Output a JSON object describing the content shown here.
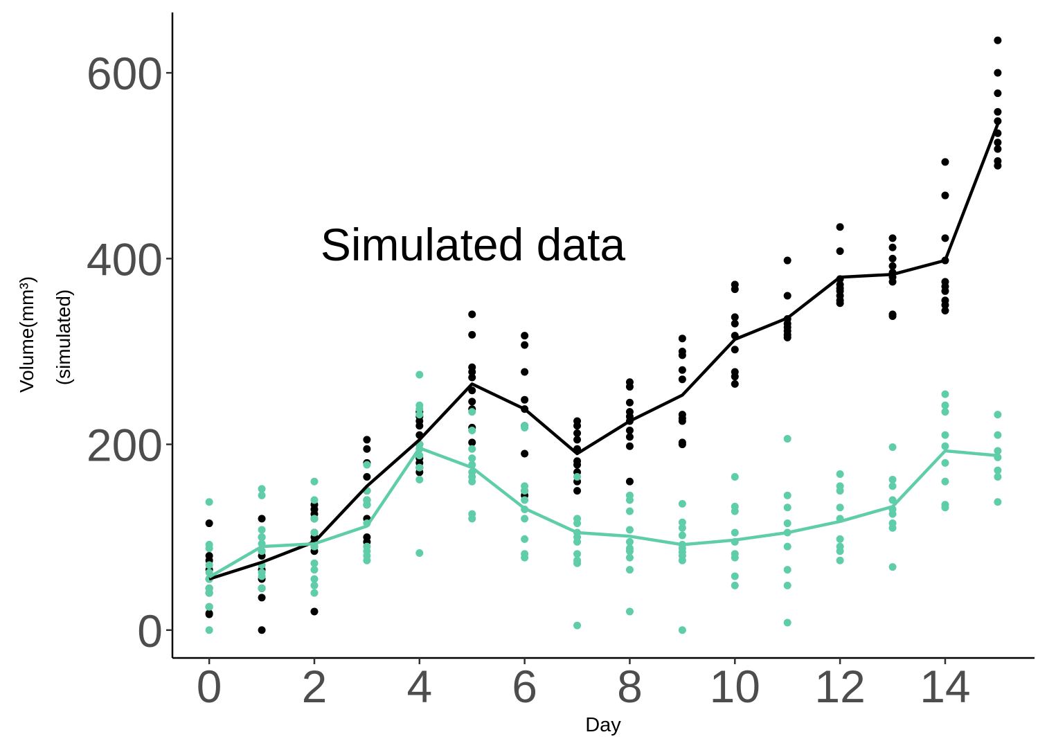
{
  "chart_data": {
    "type": "scatter",
    "title": "",
    "xlabel": "Day",
    "ylabel": [
      "Volume(mm³)",
      "(simulated)"
    ],
    "annotation": "Simulated data",
    "xlim": [
      -0.7,
      15.7
    ],
    "ylim": [
      -30,
      665
    ],
    "x_ticks": [
      0,
      2,
      4,
      6,
      8,
      10,
      12,
      14
    ],
    "y_ticks": [
      0,
      200,
      400,
      600
    ],
    "grid": false,
    "legend": "none",
    "series": [
      {
        "color": "#000000",
        "mean_line": [
          [
            0,
            55
          ],
          [
            1,
            73
          ],
          [
            2,
            95
          ],
          [
            3,
            155
          ],
          [
            4,
            205
          ],
          [
            5,
            265
          ],
          [
            6,
            238
          ],
          [
            7,
            190
          ],
          [
            8,
            225
          ],
          [
            9,
            253
          ],
          [
            10,
            313
          ],
          [
            11,
            336
          ],
          [
            12,
            380
          ],
          [
            13,
            383
          ],
          [
            14,
            398
          ],
          [
            15,
            545
          ]
        ],
        "points": [
          [
            0,
            115
          ],
          [
            0,
            80
          ],
          [
            0,
            75
          ],
          [
            0,
            65
          ],
          [
            0,
            55
          ],
          [
            0,
            45
          ],
          [
            0,
            40
          ],
          [
            0,
            25
          ],
          [
            0,
            18
          ],
          [
            0,
            17
          ],
          [
            1,
            120
          ],
          [
            1,
            100
          ],
          [
            1,
            85
          ],
          [
            1,
            80
          ],
          [
            1,
            65
          ],
          [
            1,
            55
          ],
          [
            1,
            45
          ],
          [
            1,
            35
          ],
          [
            1,
            0
          ],
          [
            2,
            135
          ],
          [
            2,
            130
          ],
          [
            2,
            125
          ],
          [
            2,
            120
          ],
          [
            2,
            105
          ],
          [
            2,
            100
          ],
          [
            2,
            95
          ],
          [
            2,
            90
          ],
          [
            2,
            85
          ],
          [
            2,
            20
          ],
          [
            3,
            205
          ],
          [
            3,
            195
          ],
          [
            3,
            180
          ],
          [
            3,
            165
          ],
          [
            3,
            150
          ],
          [
            3,
            140
          ],
          [
            3,
            135
          ],
          [
            3,
            120
          ],
          [
            3,
            100
          ],
          [
            3,
            95
          ],
          [
            4,
            235
          ],
          [
            4,
            230
          ],
          [
            4,
            225
          ],
          [
            4,
            220
          ],
          [
            4,
            210
          ],
          [
            4,
            200
          ],
          [
            4,
            185
          ],
          [
            4,
            180
          ],
          [
            4,
            175
          ],
          [
            4,
            170
          ],
          [
            5,
            340
          ],
          [
            5,
            318
          ],
          [
            5,
            283
          ],
          [
            5,
            278
          ],
          [
            5,
            272
          ],
          [
            5,
            258
          ],
          [
            5,
            246
          ],
          [
            5,
            238
          ],
          [
            5,
            218
          ],
          [
            5,
            202
          ],
          [
            6,
            317
          ],
          [
            6,
            307
          ],
          [
            6,
            278
          ],
          [
            6,
            248
          ],
          [
            6,
            238
          ],
          [
            6,
            220
          ],
          [
            6,
            190
          ],
          [
            6,
            150
          ],
          [
            6,
            145
          ],
          [
            7,
            225
          ],
          [
            7,
            220
          ],
          [
            7,
            212
          ],
          [
            7,
            205
          ],
          [
            7,
            195
          ],
          [
            7,
            182
          ],
          [
            7,
            178
          ],
          [
            7,
            170
          ],
          [
            7,
            160
          ],
          [
            7,
            150
          ],
          [
            8,
            267
          ],
          [
            8,
            262
          ],
          [
            8,
            245
          ],
          [
            8,
            235
          ],
          [
            8,
            230
          ],
          [
            8,
            225
          ],
          [
            8,
            215
          ],
          [
            8,
            208
          ],
          [
            8,
            198
          ],
          [
            8,
            160
          ],
          [
            9,
            314
          ],
          [
            9,
            300
          ],
          [
            9,
            296
          ],
          [
            9,
            280
          ],
          [
            9,
            270
          ],
          [
            9,
            232
          ],
          [
            9,
            228
          ],
          [
            9,
            225
          ],
          [
            9,
            202
          ],
          [
            9,
            200
          ],
          [
            10,
            372
          ],
          [
            10,
            367
          ],
          [
            10,
            337
          ],
          [
            10,
            330
          ],
          [
            10,
            317
          ],
          [
            10,
            302
          ],
          [
            10,
            278
          ],
          [
            10,
            273
          ],
          [
            10,
            265
          ],
          [
            11,
            398
          ],
          [
            11,
            360
          ],
          [
            11,
            335
          ],
          [
            11,
            330
          ],
          [
            11,
            326
          ],
          [
            11,
            322
          ],
          [
            11,
            318
          ],
          [
            11,
            315
          ],
          [
            12,
            434
          ],
          [
            12,
            408
          ],
          [
            12,
            378
          ],
          [
            12,
            372
          ],
          [
            12,
            368
          ],
          [
            12,
            365
          ],
          [
            12,
            360
          ],
          [
            12,
            355
          ],
          [
            12,
            352
          ],
          [
            13,
            422
          ],
          [
            13,
            412
          ],
          [
            13,
            400
          ],
          [
            13,
            392
          ],
          [
            13,
            385
          ],
          [
            13,
            380
          ],
          [
            13,
            375
          ],
          [
            13,
            340
          ],
          [
            13,
            338
          ],
          [
            14,
            504
          ],
          [
            14,
            468
          ],
          [
            14,
            422
          ],
          [
            14,
            398
          ],
          [
            14,
            375
          ],
          [
            14,
            370
          ],
          [
            14,
            365
          ],
          [
            14,
            355
          ],
          [
            14,
            350
          ],
          [
            14,
            344
          ],
          [
            15,
            635
          ],
          [
            15,
            600
          ],
          [
            15,
            578
          ],
          [
            15,
            558
          ],
          [
            15,
            548
          ],
          [
            15,
            535
          ],
          [
            15,
            525
          ],
          [
            15,
            518
          ],
          [
            15,
            505
          ],
          [
            15,
            500
          ]
        ]
      },
      {
        "color": "#5fcdaa",
        "mean_line": [
          [
            0,
            57
          ],
          [
            1,
            90
          ],
          [
            2,
            93
          ],
          [
            3,
            112
          ],
          [
            4,
            196
          ],
          [
            5,
            175
          ],
          [
            6,
            131
          ],
          [
            7,
            105
          ],
          [
            8,
            101
          ],
          [
            9,
            92
          ],
          [
            10,
            97
          ],
          [
            11,
            105
          ],
          [
            12,
            117
          ],
          [
            13,
            133
          ],
          [
            14,
            193
          ],
          [
            15,
            188
          ]
        ],
        "points": [
          [
            0,
            138
          ],
          [
            0,
            92
          ],
          [
            0,
            88
          ],
          [
            0,
            70
          ],
          [
            0,
            62
          ],
          [
            0,
            55
          ],
          [
            0,
            45
          ],
          [
            0,
            40
          ],
          [
            0,
            25
          ],
          [
            0,
            0
          ],
          [
            1,
            152
          ],
          [
            1,
            145
          ],
          [
            1,
            108
          ],
          [
            1,
            100
          ],
          [
            1,
            93
          ],
          [
            1,
            85
          ],
          [
            1,
            70
          ],
          [
            1,
            62
          ],
          [
            1,
            58
          ],
          [
            1,
            45
          ],
          [
            2,
            160
          ],
          [
            2,
            140
          ],
          [
            2,
            120
          ],
          [
            2,
            105
          ],
          [
            2,
            90
          ],
          [
            2,
            72
          ],
          [
            2,
            65
          ],
          [
            2,
            55
          ],
          [
            2,
            48
          ],
          [
            2,
            40
          ],
          [
            3,
            178
          ],
          [
            3,
            150
          ],
          [
            3,
            140
          ],
          [
            3,
            135
          ],
          [
            3,
            115
          ],
          [
            3,
            90
          ],
          [
            3,
            85
          ],
          [
            3,
            80
          ],
          [
            3,
            75
          ],
          [
            4,
            275
          ],
          [
            4,
            242
          ],
          [
            4,
            238
          ],
          [
            4,
            232
          ],
          [
            4,
            200
          ],
          [
            4,
            195
          ],
          [
            4,
            188
          ],
          [
            4,
            175
          ],
          [
            4,
            162
          ],
          [
            4,
            83
          ],
          [
            5,
            235
          ],
          [
            5,
            215
          ],
          [
            5,
            195
          ],
          [
            5,
            185
          ],
          [
            5,
            178
          ],
          [
            5,
            170
          ],
          [
            5,
            165
          ],
          [
            5,
            160
          ],
          [
            5,
            125
          ],
          [
            5,
            120
          ],
          [
            6,
            220
          ],
          [
            6,
            218
          ],
          [
            6,
            155
          ],
          [
            6,
            150
          ],
          [
            6,
            140
          ],
          [
            6,
            130
          ],
          [
            6,
            120
          ],
          [
            6,
            98
          ],
          [
            6,
            82
          ],
          [
            6,
            78
          ],
          [
            7,
            165
          ],
          [
            7,
            120
          ],
          [
            7,
            115
          ],
          [
            7,
            105
          ],
          [
            7,
            100
          ],
          [
            7,
            95
          ],
          [
            7,
            82
          ],
          [
            7,
            75
          ],
          [
            7,
            72
          ],
          [
            7,
            5
          ],
          [
            8,
            145
          ],
          [
            8,
            140
          ],
          [
            8,
            128
          ],
          [
            8,
            108
          ],
          [
            8,
            95
          ],
          [
            8,
            88
          ],
          [
            8,
            85
          ],
          [
            8,
            78
          ],
          [
            8,
            65
          ],
          [
            8,
            20
          ],
          [
            9,
            136
          ],
          [
            9,
            116
          ],
          [
            9,
            110
          ],
          [
            9,
            102
          ],
          [
            9,
            92
          ],
          [
            9,
            88
          ],
          [
            9,
            84
          ],
          [
            9,
            80
          ],
          [
            9,
            75
          ],
          [
            9,
            0
          ],
          [
            10,
            165
          ],
          [
            10,
            133
          ],
          [
            10,
            128
          ],
          [
            10,
            105
          ],
          [
            10,
            95
          ],
          [
            10,
            82
          ],
          [
            10,
            78
          ],
          [
            10,
            58
          ],
          [
            10,
            48
          ],
          [
            11,
            206
          ],
          [
            11,
            145
          ],
          [
            11,
            132
          ],
          [
            11,
            115
          ],
          [
            11,
            105
          ],
          [
            11,
            90
          ],
          [
            11,
            65
          ],
          [
            11,
            48
          ],
          [
            11,
            8
          ],
          [
            12,
            168
          ],
          [
            12,
            155
          ],
          [
            12,
            150
          ],
          [
            12,
            132
          ],
          [
            12,
            120
          ],
          [
            12,
            98
          ],
          [
            12,
            90
          ],
          [
            12,
            85
          ],
          [
            12,
            75
          ],
          [
            13,
            197
          ],
          [
            13,
            162
          ],
          [
            13,
            155
          ],
          [
            13,
            140
          ],
          [
            13,
            130
          ],
          [
            13,
            125
          ],
          [
            13,
            115
          ],
          [
            13,
            110
          ],
          [
            13,
            68
          ],
          [
            14,
            254
          ],
          [
            14,
            242
          ],
          [
            14,
            235
          ],
          [
            14,
            210
          ],
          [
            14,
            198
          ],
          [
            14,
            180
          ],
          [
            14,
            160
          ],
          [
            14,
            135
          ],
          [
            14,
            132
          ],
          [
            15,
            232
          ],
          [
            15,
            210
          ],
          [
            15,
            193
          ],
          [
            15,
            186
          ],
          [
            15,
            172
          ],
          [
            15,
            165
          ],
          [
            15,
            138
          ]
        ]
      }
    ]
  }
}
